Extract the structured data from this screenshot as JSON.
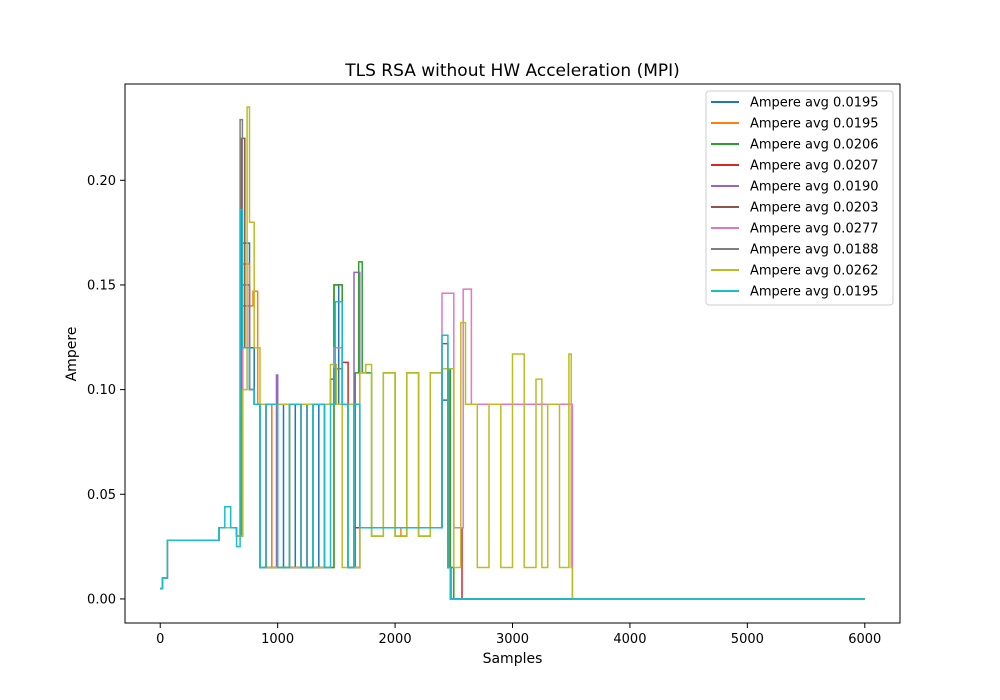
{
  "chart_data": {
    "type": "line",
    "title": "TLS RSA without HW Acceleration (MPI)",
    "xlabel": "Samples",
    "ylabel": "Ampere",
    "xlim": [
      -300,
      6300
    ],
    "ylim": [
      -0.0115,
      0.246
    ],
    "xticks": [
      0,
      1000,
      2000,
      3000,
      4000,
      5000,
      6000
    ],
    "xtick_labels": [
      "0",
      "1000",
      "2000",
      "3000",
      "4000",
      "5000",
      "6000"
    ],
    "yticks": [
      0.0,
      0.05,
      0.1,
      0.15,
      0.2
    ],
    "ytick_labels": [
      "0.00",
      "0.05",
      "0.10",
      "0.15",
      "0.20"
    ],
    "grid": false,
    "legend_position": "top-right",
    "series": [
      {
        "name": "Ampere avg 0.0195",
        "color": "#1f77b4",
        "x": [
          0,
          20,
          60,
          250,
          500,
          650,
          700,
          760,
          800,
          850,
          900,
          950,
          1000,
          1050,
          1100,
          1150,
          1200,
          1250,
          1300,
          1350,
          1400,
          1450,
          1480,
          1520,
          1600,
          1650,
          1700,
          1800,
          1900,
          2000,
          2100,
          2200,
          2300,
          2400,
          2450,
          2470,
          3000,
          4000,
          6000
        ],
        "y": [
          0.005,
          0.01,
          0.028,
          0.028,
          0.034,
          0.03,
          0.17,
          0.12,
          0.093,
          0.015,
          0.093,
          0.015,
          0.093,
          0.015,
          0.093,
          0.015,
          0.093,
          0.015,
          0.093,
          0.015,
          0.093,
          0.105,
          0.15,
          0.093,
          0.015,
          0.093,
          0.034,
          0.034,
          0.034,
          0.034,
          0.034,
          0.034,
          0.034,
          0.095,
          0.015,
          0.0,
          0.0,
          0.0,
          0.0
        ]
      },
      {
        "name": "Ampere avg 0.0195",
        "color": "#ff7f0e",
        "x": [
          0,
          20,
          60,
          250,
          500,
          650,
          700,
          760,
          790,
          830,
          900,
          950,
          1000,
          1100,
          1200,
          1300,
          1400,
          1480,
          1550,
          1600,
          1700,
          1800,
          1900,
          2000,
          2050,
          2100,
          2200,
          2300,
          2400,
          2460,
          2480,
          3000,
          6000
        ],
        "y": [
          0.005,
          0.01,
          0.028,
          0.028,
          0.034,
          0.03,
          0.16,
          0.14,
          0.147,
          0.093,
          0.015,
          0.093,
          0.015,
          0.093,
          0.015,
          0.093,
          0.015,
          0.15,
          0.093,
          0.015,
          0.034,
          0.034,
          0.034,
          0.034,
          0.03,
          0.034,
          0.034,
          0.034,
          0.11,
          0.015,
          0.0,
          0.0,
          0.0
        ]
      },
      {
        "name": "Ampere avg 0.0206",
        "color": "#2ca02c",
        "x": [
          0,
          20,
          60,
          250,
          500,
          650,
          700,
          760,
          800,
          850,
          900,
          1000,
          1100,
          1200,
          1300,
          1400,
          1480,
          1550,
          1600,
          1660,
          1690,
          1720,
          1800,
          1900,
          2000,
          2100,
          2200,
          2300,
          2400,
          2470,
          2500,
          3000,
          6000
        ],
        "y": [
          0.005,
          0.01,
          0.028,
          0.028,
          0.034,
          0.03,
          0.12,
          0.1,
          0.093,
          0.015,
          0.093,
          0.015,
          0.093,
          0.015,
          0.093,
          0.015,
          0.15,
          0.093,
          0.015,
          0.108,
          0.161,
          0.108,
          0.03,
          0.108,
          0.03,
          0.108,
          0.03,
          0.108,
          0.11,
          0.015,
          0.0,
          0.0,
          0.0
        ]
      },
      {
        "name": "Ampere avg 0.0207",
        "color": "#d62728",
        "x": [
          0,
          20,
          60,
          250,
          500,
          650,
          700,
          760,
          800,
          900,
          1000,
          1100,
          1200,
          1300,
          1400,
          1480,
          1550,
          1600,
          1650,
          1700,
          1800,
          1900,
          2000,
          2100,
          2200,
          2300,
          2400,
          2500,
          2570,
          2600,
          3000,
          6000
        ],
        "y": [
          0.005,
          0.01,
          0.028,
          0.028,
          0.034,
          0.03,
          0.15,
          0.1,
          0.093,
          0.015,
          0.093,
          0.015,
          0.093,
          0.015,
          0.093,
          0.11,
          0.113,
          0.015,
          0.034,
          0.034,
          0.034,
          0.034,
          0.034,
          0.034,
          0.034,
          0.034,
          0.11,
          0.034,
          0.0,
          0.0,
          0.0,
          0.0
        ]
      },
      {
        "name": "Ampere avg 0.0190",
        "color": "#9467bd",
        "x": [
          0,
          20,
          60,
          250,
          500,
          650,
          700,
          760,
          800,
          900,
          990,
          1000,
          1100,
          1200,
          1300,
          1400,
          1480,
          1550,
          1600,
          1650,
          1700,
          1800,
          1900,
          2000,
          2100,
          2200,
          2300,
          2400,
          2450,
          2470,
          3000,
          6000
        ],
        "y": [
          0.005,
          0.01,
          0.028,
          0.028,
          0.034,
          0.03,
          0.14,
          0.1,
          0.093,
          0.015,
          0.107,
          0.093,
          0.015,
          0.093,
          0.015,
          0.093,
          0.12,
          0.093,
          0.015,
          0.156,
          0.034,
          0.034,
          0.034,
          0.034,
          0.034,
          0.034,
          0.034,
          0.11,
          0.015,
          0.0,
          0.0,
          0.0
        ]
      },
      {
        "name": "Ampere avg 0.0203",
        "color": "#8c564b",
        "x": [
          0,
          20,
          60,
          250,
          500,
          650,
          690,
          720,
          760,
          800,
          900,
          1000,
          1100,
          1200,
          1300,
          1400,
          1480,
          1550,
          1600,
          1700,
          1800,
          1900,
          2000,
          2100,
          2200,
          2300,
          2400,
          2450,
          2470,
          3000,
          6000
        ],
        "y": [
          0.005,
          0.01,
          0.028,
          0.028,
          0.034,
          0.03,
          0.22,
          0.12,
          0.1,
          0.093,
          0.015,
          0.093,
          0.015,
          0.093,
          0.015,
          0.093,
          0.11,
          0.093,
          0.015,
          0.034,
          0.034,
          0.034,
          0.034,
          0.034,
          0.034,
          0.034,
          0.122,
          0.015,
          0.0,
          0.0,
          0.0
        ]
      },
      {
        "name": "Ampere avg 0.0277",
        "color": "#e377c2",
        "x": [
          0,
          20,
          60,
          250,
          500,
          650,
          700,
          760,
          800,
          900,
          1000,
          1100,
          1200,
          1300,
          1400,
          1480,
          1550,
          1600,
          1700,
          1800,
          1900,
          2000,
          2100,
          2200,
          2300,
          2400,
          2500,
          2580,
          2650,
          2800,
          3000,
          3100,
          3200,
          3300,
          3350,
          3500,
          3510,
          4000,
          6000
        ],
        "y": [
          0.005,
          0.01,
          0.028,
          0.028,
          0.034,
          0.03,
          0.15,
          0.1,
          0.093,
          0.015,
          0.093,
          0.015,
          0.093,
          0.015,
          0.093,
          0.12,
          0.093,
          0.015,
          0.034,
          0.034,
          0.034,
          0.034,
          0.034,
          0.034,
          0.034,
          0.146,
          0.034,
          0.148,
          0.093,
          0.093,
          0.093,
          0.093,
          0.093,
          0.093,
          0.093,
          0.093,
          0.0,
          0.0,
          0.0
        ]
      },
      {
        "name": "Ampere avg 0.0188",
        "color": "#7f7f7f",
        "x": [
          0,
          20,
          60,
          250,
          500,
          650,
          680,
          700,
          760,
          800,
          900,
          1000,
          1100,
          1200,
          1300,
          1400,
          1480,
          1550,
          1600,
          1700,
          1800,
          1900,
          2000,
          2100,
          2200,
          2300,
          2400,
          2450,
          2470,
          3000,
          6000
        ],
        "y": [
          0.005,
          0.01,
          0.028,
          0.028,
          0.034,
          0.03,
          0.229,
          0.15,
          0.1,
          0.093,
          0.015,
          0.093,
          0.015,
          0.093,
          0.015,
          0.093,
          0.11,
          0.093,
          0.015,
          0.034,
          0.034,
          0.034,
          0.034,
          0.034,
          0.034,
          0.034,
          0.11,
          0.015,
          0.0,
          0.0,
          0.0
        ]
      },
      {
        "name": "Ampere avg 0.0262",
        "color": "#bcbd22",
        "x": [
          0,
          20,
          60,
          250,
          500,
          650,
          700,
          740,
          760,
          800,
          850,
          900,
          1000,
          1100,
          1200,
          1300,
          1400,
          1450,
          1500,
          1550,
          1600,
          1650,
          1700,
          1750,
          1800,
          1900,
          2000,
          2100,
          2200,
          2300,
          2400,
          2500,
          2560,
          2600,
          2700,
          2800,
          2900,
          3000,
          3100,
          3200,
          3250,
          3300,
          3400,
          3480,
          3500,
          3510,
          4000,
          6000
        ],
        "y": [
          0.005,
          0.01,
          0.028,
          0.028,
          0.034,
          0.03,
          0.1,
          0.235,
          0.18,
          0.12,
          0.093,
          0.015,
          0.093,
          0.015,
          0.093,
          0.015,
          0.093,
          0.112,
          0.093,
          0.015,
          0.093,
          0.015,
          0.108,
          0.112,
          0.03,
          0.108,
          0.03,
          0.108,
          0.03,
          0.108,
          0.11,
          0.015,
          0.132,
          0.093,
          0.015,
          0.093,
          0.015,
          0.117,
          0.015,
          0.105,
          0.015,
          0.093,
          0.015,
          0.117,
          0.015,
          0.0,
          0.0,
          0.0
        ]
      },
      {
        "name": "Ampere avg 0.0195",
        "color": "#17becf",
        "x": [
          0,
          20,
          60,
          250,
          400,
          500,
          550,
          600,
          650,
          680,
          700,
          760,
          800,
          850,
          900,
          1000,
          1100,
          1200,
          1300,
          1400,
          1450,
          1490,
          1550,
          1600,
          1650,
          1700,
          1800,
          1900,
          2000,
          2100,
          2200,
          2300,
          2400,
          2450,
          2470,
          3000,
          6000
        ],
        "y": [
          0.005,
          0.01,
          0.028,
          0.028,
          0.028,
          0.034,
          0.044,
          0.034,
          0.025,
          0.186,
          0.12,
          0.1,
          0.093,
          0.015,
          0.093,
          0.015,
          0.093,
          0.015,
          0.093,
          0.015,
          0.093,
          0.142,
          0.093,
          0.015,
          0.093,
          0.034,
          0.034,
          0.034,
          0.034,
          0.034,
          0.034,
          0.034,
          0.126,
          0.015,
          0.0,
          0.0,
          0.0
        ]
      }
    ]
  }
}
